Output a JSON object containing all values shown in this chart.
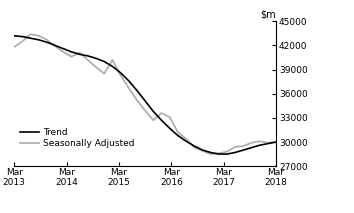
{
  "ylim": [
    27000,
    45000
  ],
  "yticks": [
    27000,
    30000,
    33000,
    36000,
    39000,
    42000,
    45000
  ],
  "xtick_labels": [
    "Mar\n2013",
    "Mar\n2014",
    "Mar\n2015",
    "Mar\n2016",
    "Mar\n2017",
    "Mar\n2018"
  ],
  "xtick_positions": [
    0,
    4,
    8,
    12,
    16,
    20
  ],
  "x_total": 20,
  "trend": [
    43200,
    43100,
    42900,
    42700,
    42400,
    42000,
    41600,
    41200,
    40900,
    40700,
    40400,
    40000,
    39400,
    38600,
    37600,
    36400,
    35100,
    33800,
    32700,
    31700,
    30800,
    30100,
    29500,
    29000,
    28700,
    28500,
    28500,
    28700,
    29000,
    29300,
    29600,
    29800,
    30000
  ],
  "seasonal": [
    41800,
    42500,
    43400,
    43200,
    42700,
    41900,
    41200,
    40600,
    41100,
    40200,
    39300,
    38500,
    40200,
    38300,
    36700,
    35200,
    33900,
    32700,
    33600,
    33100,
    31200,
    30400,
    29300,
    28900,
    28500,
    28600,
    28800,
    29400,
    29500,
    29900,
    30100,
    29900,
    30000
  ],
  "trend_color": "#000000",
  "seasonal_color": "#aaaaaa",
  "trend_linewidth": 1.2,
  "seasonal_linewidth": 1.2,
  "legend_labels": [
    "Trend",
    "Seasonally Adjusted"
  ],
  "background_color": "#ffffff",
  "fontsize_title": 7,
  "fontsize_tick": 6.5,
  "fontsize_legend": 6.5
}
